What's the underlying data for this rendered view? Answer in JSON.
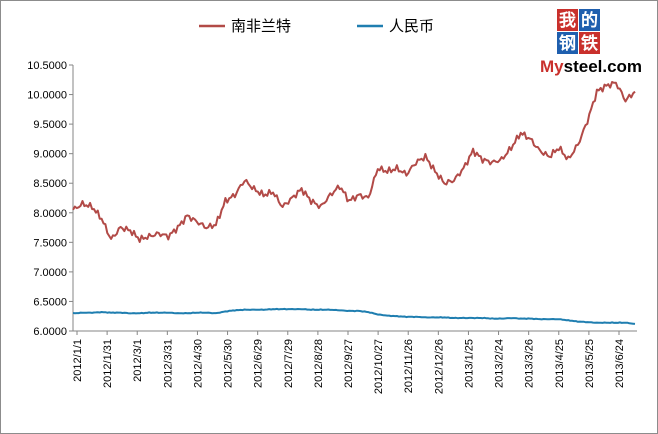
{
  "chart_data": {
    "type": "line",
    "title": "",
    "xlabel": "",
    "ylabel": "",
    "ylim": [
      6.0,
      10.5
    ],
    "y_ticks": [
      "6.0000",
      "6.5000",
      "7.0000",
      "7.5000",
      "8.0000",
      "8.5000",
      "9.0000",
      "9.5000",
      "10.0000",
      "10.5000"
    ],
    "x_ticks": [
      "2012/1/1",
      "2012/1/31",
      "2012/3/1",
      "2012/3/31",
      "2012/4/30",
      "2012/5/30",
      "2012/6/29",
      "2012/7/29",
      "2012/8/28",
      "2012/9/27",
      "2012/10/27",
      "2012/11/26",
      "2012/12/26",
      "2013/1/25",
      "2013/2/24",
      "2013/3/26",
      "2013/4/25",
      "2013/5/25",
      "2013/6/24"
    ],
    "grid": false,
    "legend_position": "top",
    "series": [
      {
        "name": "南非兰特",
        "color": "#b24a47",
        "values": [
          8.05,
          8.15,
          8.1,
          7.9,
          7.55,
          7.75,
          7.7,
          7.55,
          7.6,
          7.65,
          7.6,
          7.75,
          7.95,
          7.85,
          7.75,
          7.8,
          8.2,
          8.3,
          8.55,
          8.4,
          8.3,
          8.35,
          8.1,
          8.25,
          8.4,
          8.2,
          8.1,
          8.3,
          8.45,
          8.2,
          8.3,
          8.25,
          8.75,
          8.7,
          8.75,
          8.65,
          8.85,
          8.95,
          8.7,
          8.5,
          8.55,
          8.75,
          9.05,
          8.9,
          8.85,
          8.9,
          9.1,
          9.35,
          9.25,
          9.05,
          8.95,
          9.1,
          8.9,
          9.15,
          9.55,
          10.05,
          10.15,
          10.2,
          9.9,
          10.05
        ]
      },
      {
        "name": "人民币",
        "color": "#1f7eb0",
        "values": [
          6.3,
          6.31,
          6.31,
          6.32,
          6.31,
          6.31,
          6.3,
          6.3,
          6.31,
          6.31,
          6.31,
          6.3,
          6.3,
          6.31,
          6.31,
          6.3,
          6.33,
          6.35,
          6.36,
          6.36,
          6.36,
          6.37,
          6.37,
          6.37,
          6.37,
          6.36,
          6.36,
          6.36,
          6.35,
          6.34,
          6.34,
          6.32,
          6.28,
          6.26,
          6.25,
          6.24,
          6.24,
          6.23,
          6.23,
          6.23,
          6.22,
          6.22,
          6.22,
          6.22,
          6.21,
          6.21,
          6.22,
          6.21,
          6.21,
          6.2,
          6.2,
          6.2,
          6.18,
          6.16,
          6.15,
          6.14,
          6.14,
          6.14,
          6.14,
          6.12
        ]
      }
    ]
  },
  "logo": {
    "top_chars": [
      "我",
      "的"
    ],
    "bottom_chars": [
      "钢",
      "铁"
    ],
    "text_my": "My",
    "text_rest": "steel.com"
  }
}
